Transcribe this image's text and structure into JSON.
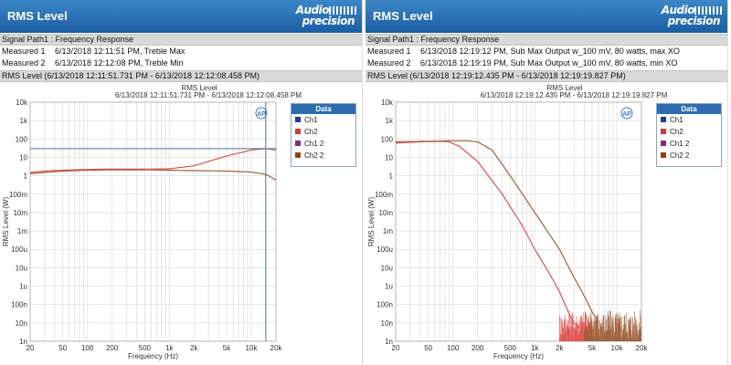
{
  "panels": [
    {
      "title": "RMS Level",
      "logo": [
        "Audio",
        "precision"
      ],
      "signal_path": "Signal Path1 : Frequency Response",
      "measurements": [
        {
          "label": "Measured 1",
          "value": "6/13/2018 12:11:51 PM, Treble Max"
        },
        {
          "label": "Measured 2",
          "value": "6/13/2018 12:12:08 PM, Treble Min"
        }
      ],
      "rms_bar": "RMS Level (6/13/2018 12:11:51.731 PM - 6/13/2018 12:12:08.458 PM)",
      "chart_title": "RMS Level",
      "chart_subtitle": "6/13/2018 12:11:51.731 PM - 6/13/2018 12:12:08.458 PM",
      "legend_title": "Data",
      "legend_items": [
        "Ch1",
        "Ch2",
        "Ch1  2",
        "Ch2  2"
      ]
    },
    {
      "title": "RMS Level",
      "logo": [
        "Audio",
        "precision"
      ],
      "signal_path": "Signal Path1 : Frequency Response",
      "measurements": [
        {
          "label": "Measured 1",
          "value": "6/13/2018 12:19:12 PM, Sub Max Output w_100 mV, 80 watts, max XO"
        },
        {
          "label": "Measured 2",
          "value": "6/13/2018 12:19:19 PM, Sub Max Output w_100 mV, 80 watts, min XO"
        }
      ],
      "rms_bar": "RMS Level (6/13/2018 12:19:12.435 PM - 6/13/2018 12:19:19.827 PM)",
      "chart_title": "RMS Level",
      "chart_subtitle": "6/13/2018 12:19:12.435 PM - 6/13/2018 12:19:19.827 PM",
      "legend_title": "Data",
      "legend_items": [
        "Ch1",
        "Ch2",
        "Ch1  2",
        "Ch2  2"
      ]
    }
  ],
  "colors": {
    "titlebar": "#2a6fb3",
    "ch1": "#1f3a93",
    "ch2": "#d23a3a",
    "ch1_2": "#8b2c7a",
    "ch2_2": "#8b4513",
    "line_red": "#e05050",
    "line_olive": "#a0603a",
    "cursor": "#4a6fa5",
    "grid": "#cfcfcf"
  },
  "chart_data": [
    {
      "type": "line",
      "title": "RMS Level",
      "subtitle": "6/13/2018 12:11:51.731 PM - 6/13/2018 12:12:08.458 PM",
      "xlabel": "Frequency (Hz)",
      "ylabel": "RMS Level (W)",
      "xscale": "log",
      "yscale": "log",
      "xlim": [
        20,
        20000
      ],
      "ylim": [
        1e-09,
        10000
      ],
      "x_ticks": [
        "20",
        "50",
        "100",
        "200",
        "500",
        "1k",
        "2k",
        "5k",
        "10k",
        "20k"
      ],
      "y_ticks": [
        "10k",
        "1k",
        "100",
        "10",
        "1",
        "100m",
        "10m",
        "1m",
        "100u",
        "10u",
        "1u",
        "100n",
        "10n",
        "1n"
      ],
      "legend": [
        "Ch1",
        "Ch2",
        "Ch1  2",
        "Ch2  2"
      ],
      "legend_position": "right",
      "cursor": {
        "x": 15000,
        "y": 30
      },
      "series": [
        {
          "x": [
            20,
            30,
            50,
            100,
            200,
            500,
            1000,
            2000,
            3000,
            5000,
            10000,
            15000,
            20000
          ],
          "y": [
            1.5,
            1.8,
            2.0,
            2.2,
            2.3,
            2.3,
            2.4,
            3.5,
            6,
            12,
            25,
            30,
            25
          ]
        },
        {
          "x": [
            20,
            30,
            50,
            100,
            200,
            500,
            1000,
            2000,
            5000,
            10000,
            15000,
            20000
          ],
          "y": [
            1.3,
            1.5,
            1.8,
            2.0,
            2.1,
            2.1,
            2.0,
            1.9,
            1.8,
            1.6,
            1.2,
            0.6
          ]
        }
      ]
    },
    {
      "type": "line",
      "title": "RMS Level",
      "subtitle": "6/13/2018 12:19:12.435 PM - 6/13/2018 12:19:19.827 PM",
      "xlabel": "Frequency (Hz)",
      "ylabel": "RMS Level (W)",
      "xscale": "log",
      "yscale": "log",
      "xlim": [
        20,
        20000
      ],
      "ylim": [
        1e-09,
        10000
      ],
      "x_ticks": [
        "20",
        "50",
        "100",
        "200",
        "500",
        "1k",
        "2k",
        "5k",
        "10k",
        "20k"
      ],
      "y_ticks": [
        "10k",
        "1k",
        "100",
        "10",
        "1",
        "100m",
        "10m",
        "1m",
        "100u",
        "10u",
        "1u",
        "100n",
        "10n",
        "1n"
      ],
      "legend": [
        "Ch1",
        "Ch2",
        "Ch1  2",
        "Ch2  2"
      ],
      "legend_position": "right",
      "series": [
        {
          "x": [
            20,
            40,
            70,
            90,
            120,
            200,
            400,
            700,
            1000,
            1500,
            2000,
            2500,
            3000,
            3500
          ],
          "y": [
            60,
            70,
            75,
            70,
            40,
            6,
            0.1,
            0.002,
            0.0001,
            5e-06,
            5e-07,
            5e-08,
            1e-08,
            5e-09
          ],
          "noise_floor": {
            "from": 2000,
            "to": 5000,
            "y": [
              1e-09,
              5e-08
            ]
          }
        },
        {
          "x": [
            20,
            50,
            100,
            150,
            200,
            300,
            500,
            1000,
            2000,
            3000,
            4000,
            5000,
            6000
          ],
          "y": [
            70,
            75,
            80,
            80,
            70,
            25,
            1,
            0.01,
            0.0001,
            3e-06,
            3e-07,
            4e-08,
            1e-08
          ],
          "noise_floor": {
            "from": 4000,
            "to": 20000,
            "y": [
              1e-09,
              5e-08
            ]
          }
        }
      ]
    }
  ]
}
